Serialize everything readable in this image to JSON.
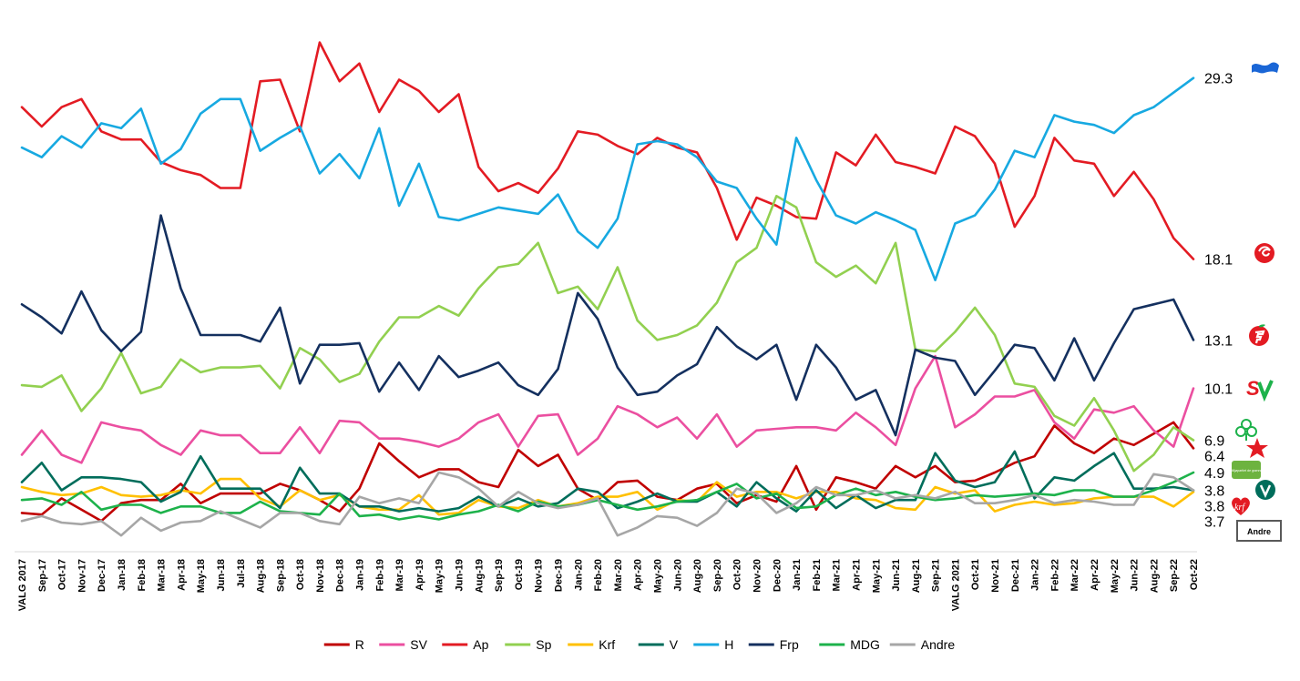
{
  "chart_data": {
    "type": "line",
    "title": "",
    "xlabel": "",
    "ylabel": "",
    "ylim": [
      0,
      33
    ],
    "grid": false,
    "legend": "bottom",
    "x": [
      "VALG 2017",
      "Sep-17",
      "Oct-17",
      "Nov-17",
      "Dec-17",
      "Jan-18",
      "Feb-18",
      "Mar-18",
      "Apr-18",
      "May-18",
      "Jun-18",
      "Jul-18",
      "Aug-18",
      "Sep-18",
      "Oct-18",
      "Nov-18",
      "Dec-18",
      "Jan-19",
      "Feb-19",
      "Mar-19",
      "Apr-19",
      "May-19",
      "Jun-19",
      "Aug-19",
      "Sep-19",
      "Oct-19",
      "Nov-19",
      "Dec-19",
      "Jan-20",
      "Feb-20",
      "Mar-20",
      "Apr-20",
      "May-20",
      "Jun-20",
      "Aug-20",
      "Sep-20",
      "Oct-20",
      "Nov-20",
      "Dec-20",
      "Jan-21",
      "Feb-21",
      "Mar-21",
      "Apr-21",
      "May-21",
      "Jun-21",
      "Aug-21",
      "Sep-21",
      "VALG 2021",
      "Oct-21",
      "Nov-21",
      "Dec-21",
      "Jan-22",
      "Feb-22",
      "Mar-22",
      "Apr-22",
      "May-22",
      "Jun-22",
      "Aug-22",
      "Sep-22",
      "Oct-22"
    ],
    "tick_labels": [
      "VALG 2017",
      "Sep-17",
      "Oct-17",
      "Nov-17",
      "Dec-17",
      "Jan-18",
      "Feb-18",
      "Mar-18",
      "Apr-18",
      "May-18",
      "Jun-18",
      "Jul-18",
      "Aug-18",
      "Sep-18",
      "Oct-18",
      "Nov-18",
      "Dec-18",
      "Jan-19",
      "Feb-19",
      "Mar-19",
      "Apr-19",
      "May-19",
      "Jun-19",
      "Aug-19",
      "Sep-19",
      "Oct-19",
      "Nov-19",
      "Dec-19",
      "Jan-20",
      "Feb-20",
      "Mar-20",
      "Apr-20",
      "May-20",
      "Jun-20",
      "Aug-20",
      "Sep-20",
      "Oct-20",
      "Nov-20",
      "Dec-20",
      "Jan-21",
      "Feb-21",
      "Mar-21",
      "Apr-21",
      "May-21",
      "Jun-21",
      "Aug-21",
      "Sep-21",
      "VALG 2021",
      "Oct-21",
      "Nov-21",
      "Dec-21",
      "Jan-22",
      "Feb-22",
      "Mar-22",
      "Apr-22",
      "May-22",
      "Jun-22",
      "Aug-22",
      "Sep-22",
      "Oct-22"
    ],
    "series": [
      {
        "name": "R",
        "color": "#C00000",
        "end_label": "6.4",
        "values": [
          2.4,
          2.3,
          3.3,
          2.6,
          1.9,
          3.0,
          3.2,
          3.2,
          4.2,
          3.0,
          3.6,
          3.6,
          3.6,
          4.2,
          3.8,
          3.2,
          2.5,
          3.9,
          6.7,
          5.6,
          4.6,
          5.1,
          5.1,
          4.3,
          4.0,
          6.3,
          5.3,
          6.0,
          3.9,
          3.2,
          4.3,
          4.4,
          3.4,
          3.2,
          3.9,
          4.2,
          3.0,
          3.5,
          3.1,
          5.3,
          2.6,
          4.6,
          4.3,
          3.9,
          5.3,
          4.6,
          5.3,
          4.3,
          4.4,
          4.9,
          5.5,
          5.9,
          7.8,
          6.7,
          6.1,
          7.0,
          6.6,
          7.3,
          8.0,
          6.4
        ]
      },
      {
        "name": "SV",
        "color": "#EB4FA0",
        "end_label": "10.1",
        "values": [
          6.0,
          7.5,
          6.0,
          5.5,
          8.0,
          7.7,
          7.5,
          6.6,
          6.0,
          7.5,
          7.2,
          7.2,
          6.1,
          6.1,
          7.7,
          6.1,
          8.1,
          8.0,
          7.0,
          7.0,
          6.8,
          6.5,
          7.0,
          8.0,
          8.5,
          6.5,
          8.4,
          8.5,
          6.0,
          7.0,
          9.0,
          8.5,
          7.7,
          8.3,
          7.0,
          8.5,
          6.5,
          7.5,
          7.6,
          7.7,
          7.7,
          7.5,
          8.6,
          7.7,
          6.6,
          10.1,
          12.1,
          7.7,
          8.5,
          9.6,
          9.6,
          10.0,
          8.0,
          7.0,
          8.8,
          8.6,
          9.0,
          7.5,
          6.5,
          10.1
        ]
      },
      {
        "name": "Ap",
        "color": "#E31B23",
        "end_label": "18.1",
        "values": [
          27.5,
          26.3,
          27.5,
          28.0,
          26.0,
          25.5,
          25.5,
          24.1,
          23.6,
          23.3,
          22.5,
          22.5,
          29.1,
          29.2,
          26.0,
          31.5,
          29.1,
          30.2,
          27.2,
          29.2,
          28.5,
          27.2,
          28.3,
          23.8,
          22.3,
          22.8,
          22.2,
          23.7,
          26.0,
          25.8,
          25.1,
          24.6,
          25.6,
          25.0,
          24.7,
          22.5,
          19.3,
          21.9,
          21.4,
          20.7,
          20.6,
          24.7,
          23.9,
          25.8,
          24.1,
          23.8,
          23.4,
          26.3,
          25.7,
          24.0,
          20.1,
          22.0,
          25.6,
          24.2,
          24.0,
          22.0,
          23.5,
          21.8,
          19.4,
          18.1
        ]
      },
      {
        "name": "Sp",
        "color": "#92D050",
        "end_label": "6.9",
        "values": [
          10.3,
          10.2,
          10.9,
          8.7,
          10.1,
          12.3,
          9.8,
          10.2,
          11.9,
          11.1,
          11.4,
          11.4,
          11.5,
          10.1,
          12.6,
          11.9,
          10.5,
          11.0,
          13.0,
          14.5,
          14.5,
          15.2,
          14.6,
          16.3,
          17.6,
          17.8,
          19.1,
          16.0,
          16.4,
          15.0,
          17.6,
          14.3,
          13.1,
          13.4,
          14.0,
          15.4,
          17.9,
          18.8,
          22.0,
          21.3,
          17.9,
          17.0,
          17.7,
          16.6,
          19.1,
          12.5,
          12.4,
          13.6,
          15.1,
          13.4,
          10.4,
          10.2,
          8.4,
          7.8,
          9.5,
          7.5,
          5.0,
          6.0,
          7.7,
          6.9
        ]
      },
      {
        "name": "Krf",
        "color": "#FFC000",
        "end_label": "3.7",
        "values": [
          4.0,
          3.7,
          3.5,
          3.6,
          4.0,
          3.5,
          3.4,
          3.5,
          3.8,
          3.6,
          4.5,
          4.5,
          3.3,
          2.8,
          3.8,
          3.2,
          3.5,
          2.8,
          2.6,
          2.6,
          3.5,
          2.3,
          2.4,
          3.2,
          2.8,
          2.7,
          3.2,
          2.8,
          3.0,
          3.4,
          3.4,
          3.7,
          2.6,
          3.2,
          3.1,
          4.3,
          3.4,
          3.7,
          3.7,
          3.3,
          3.7,
          3.7,
          3.3,
          3.2,
          2.7,
          2.6,
          4.0,
          3.6,
          3.8,
          2.5,
          2.9,
          3.1,
          2.9,
          3.0,
          3.3,
          3.4,
          3.4,
          3.4,
          2.8,
          3.7
        ]
      },
      {
        "name": "V",
        "color": "#006D5B",
        "end_label": "3.8",
        "values": [
          4.3,
          5.5,
          3.8,
          4.6,
          4.6,
          4.5,
          4.3,
          3.1,
          3.7,
          5.9,
          3.9,
          3.9,
          3.9,
          2.7,
          5.2,
          3.6,
          3.6,
          2.8,
          2.8,
          2.5,
          2.7,
          2.5,
          2.7,
          3.4,
          2.8,
          3.3,
          2.8,
          3.0,
          3.9,
          3.7,
          2.7,
          3.1,
          3.6,
          3.1,
          3.1,
          3.7,
          2.8,
          4.3,
          3.3,
          2.5,
          3.8,
          2.7,
          3.5,
          2.7,
          3.2,
          3.2,
          6.1,
          4.4,
          4.0,
          4.3,
          6.2,
          3.3,
          4.6,
          4.4,
          5.3,
          6.1,
          3.9,
          3.9,
          4.0,
          3.8
        ]
      },
      {
        "name": "H",
        "color": "#17A9E1",
        "end_label": "29.3",
        "values": [
          25.0,
          24.4,
          25.7,
          25.0,
          26.5,
          26.2,
          27.4,
          24.0,
          24.9,
          27.1,
          28.0,
          28.0,
          24.8,
          25.6,
          26.3,
          23.4,
          24.6,
          23.1,
          26.2,
          21.4,
          24.0,
          20.7,
          20.5,
          20.9,
          21.3,
          21.1,
          20.9,
          22.1,
          19.8,
          18.8,
          20.6,
          25.2,
          25.4,
          25.2,
          24.4,
          22.9,
          22.5,
          20.6,
          19.0,
          25.6,
          23.0,
          20.8,
          20.3,
          21.0,
          20.5,
          19.9,
          16.8,
          20.3,
          20.8,
          22.4,
          24.8,
          24.4,
          27.0,
          26.6,
          26.4,
          25.9,
          27.0,
          27.5,
          28.4,
          29.3
        ]
      },
      {
        "name": "Frp",
        "color": "#14305F",
        "end_label": "13.1",
        "values": [
          15.3,
          14.5,
          13.5,
          16.1,
          13.7,
          12.4,
          13.6,
          20.8,
          16.3,
          13.4,
          13.4,
          13.4,
          13.0,
          15.1,
          10.4,
          12.8,
          12.8,
          12.9,
          9.9,
          11.7,
          10.0,
          12.1,
          10.8,
          11.2,
          11.7,
          10.3,
          9.7,
          11.3,
          16.0,
          14.4,
          11.4,
          9.7,
          9.9,
          10.9,
          11.6,
          13.9,
          12.7,
          11.9,
          12.8,
          9.4,
          12.8,
          11.4,
          9.4,
          10.0,
          7.2,
          12.5,
          12.0,
          11.8,
          9.7,
          11.2,
          12.8,
          12.6,
          10.6,
          13.2,
          10.6,
          12.9,
          15.0,
          15.3,
          15.6,
          13.1
        ]
      },
      {
        "name": "MDG",
        "color": "#1DB24B",
        "end_label": "4.9",
        "values": [
          3.2,
          3.3,
          2.9,
          3.7,
          2.6,
          2.9,
          2.9,
          2.4,
          2.8,
          2.8,
          2.4,
          2.4,
          3.1,
          2.5,
          2.4,
          2.3,
          3.6,
          2.2,
          2.3,
          2.0,
          2.2,
          2.0,
          2.3,
          2.5,
          2.9,
          2.5,
          3.1,
          2.8,
          2.9,
          3.2,
          2.9,
          2.6,
          2.8,
          3.1,
          3.2,
          3.7,
          4.2,
          3.3,
          3.6,
          2.7,
          2.8,
          3.5,
          3.9,
          3.5,
          3.7,
          3.4,
          3.2,
          3.3,
          3.5,
          3.4,
          3.5,
          3.6,
          3.5,
          3.8,
          3.8,
          3.4,
          3.4,
          3.8,
          4.3,
          4.9
        ]
      },
      {
        "name": "Andre",
        "color": "#A6A6A6",
        "end_label": "3.8",
        "values": [
          1.9,
          2.2,
          1.8,
          1.7,
          1.9,
          1.0,
          2.1,
          1.3,
          1.8,
          1.9,
          2.5,
          2.0,
          1.5,
          2.4,
          2.4,
          1.9,
          1.7,
          3.4,
          3.0,
          3.3,
          3.0,
          4.9,
          4.6,
          3.9,
          2.8,
          3.7,
          3.0,
          2.7,
          2.9,
          3.3,
          1.0,
          1.5,
          2.2,
          2.1,
          1.6,
          2.4,
          3.9,
          3.6,
          2.4,
          3.0,
          4.0,
          3.5,
          3.5,
          3.8,
          3.3,
          3.5,
          3.3,
          3.7,
          3.0,
          3.0,
          3.2,
          3.5,
          3.0,
          3.2,
          3.1,
          2.9,
          2.9,
          4.8,
          4.6,
          3.8
        ]
      }
    ]
  },
  "party_logos": [
    {
      "party": "H",
      "icon": "hoyre-wave-icon"
    },
    {
      "party": "Ap",
      "icon": "ap-rose-icon"
    },
    {
      "party": "Frp",
      "icon": "frp-apple-icon"
    },
    {
      "party": "SV",
      "icon": "sv-logo-icon"
    },
    {
      "party": "Sp",
      "icon": "sp-clover-icon"
    },
    {
      "party": "R",
      "icon": "rodt-star-icon"
    },
    {
      "party": "MDG",
      "icon": "mdg-badge-icon"
    },
    {
      "party": "V",
      "icon": "venstre-v-icon"
    },
    {
      "party": "Krf",
      "icon": "krf-heart-icon"
    }
  ],
  "mdg_badge_text": "Miljøpartiet de grønne",
  "andre_box_label": "Andre"
}
